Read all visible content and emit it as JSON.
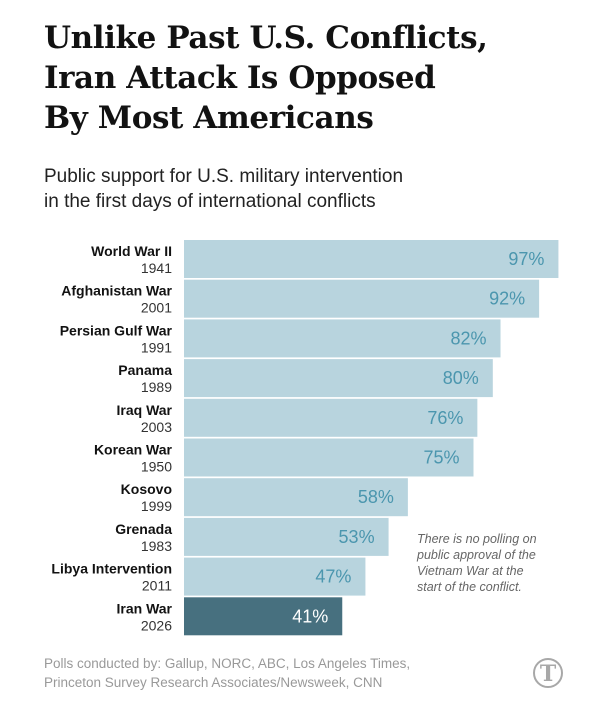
{
  "title_lines": [
    "Unlike Past U.S. Conflicts,",
    "Iran Attack Is Opposed",
    "By Most Americans"
  ],
  "subtitle_lines": [
    "Public support for U.S. military intervention",
    "in the first days of international conflicts"
  ],
  "note_lines": [
    "There is no polling on",
    "public approval of the",
    "Vietnam War at the",
    "start of the conflict."
  ],
  "source_lines": [
    "Polls conducted by: Gallup, NORC, ABC, Los Angeles Times,",
    "Princeton Survey Research Associates/Newsweek, CNN"
  ],
  "logo": {
    "icon": "nyt-logo-icon",
    "glyph": "T"
  },
  "colors": {
    "bar": "#b8d4de",
    "bar_highlight": "#47707f",
    "label": "#4b96ae",
    "label_highlight": "#ffffff"
  },
  "chart_data": {
    "type": "bar",
    "orientation": "horizontal",
    "categories": [
      "World War II",
      "Afghanistan War",
      "Persian Gulf War",
      "Panama",
      "Iraq War",
      "Korean War",
      "Kosovo",
      "Grenada",
      "Libya Intervention",
      "Iran War"
    ],
    "years": [
      "1941",
      "2001",
      "1991",
      "1989",
      "2003",
      "1950",
      "1999",
      "1983",
      "2011",
      "2026"
    ],
    "values": [
      97,
      92,
      82,
      80,
      76,
      75,
      58,
      53,
      47,
      41
    ],
    "value_labels": [
      "97%",
      "92%",
      "82%",
      "80%",
      "76%",
      "75%",
      "58%",
      "53%",
      "47%",
      "41%"
    ],
    "highlight": "Iran War",
    "xlim": [
      0,
      100
    ],
    "unit": "%"
  }
}
